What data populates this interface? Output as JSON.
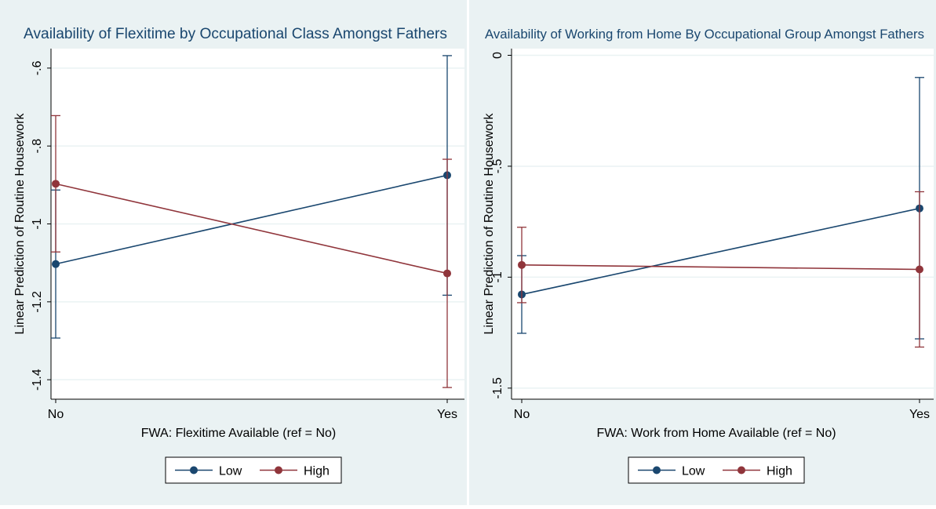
{
  "colors": {
    "low": "#1a476f",
    "high": "#90353b",
    "background": "#eaf2f3",
    "plot_bg": "#ffffff"
  },
  "chart_data": [
    {
      "type": "line",
      "title": "Availability of Flexitime by Occupational Class Amongst Fathers",
      "xlabel": "FWA: Flexitime Available (ref = No)",
      "ylabel": "Linear Prediction of Routine Housework",
      "categories": [
        "No",
        "Yes"
      ],
      "ylim": [
        -1.45,
        -0.55
      ],
      "yticks": [
        -1.4,
        -1.2,
        -1,
        -0.8,
        -0.6
      ],
      "ytick_labels": [
        "-1.4",
        "-1.2",
        "-1",
        "-.8",
        "-.6"
      ],
      "grid": true,
      "legend_position": "bottom",
      "series": [
        {
          "name": "Low",
          "values": [
            -1.103,
            -0.875
          ],
          "ci_low": [
            -1.293,
            -1.183
          ],
          "ci_high": [
            -0.913,
            -0.568
          ]
        },
        {
          "name": "High",
          "values": [
            -0.897,
            -1.127
          ],
          "ci_low": [
            -1.072,
            -1.42
          ],
          "ci_high": [
            -0.722,
            -0.834
          ]
        }
      ]
    },
    {
      "type": "line",
      "title": "Availability of Working from Home By Occupational Group Amongst Fathers",
      "xlabel": "FWA: Work from Home Available (ref = No)",
      "ylabel": "Linear Prediction of Routine Housework",
      "categories": [
        "No",
        "Yes"
      ],
      "ylim": [
        -1.55,
        0.03
      ],
      "yticks": [
        -1.5,
        -1,
        -0.5,
        0
      ],
      "ytick_labels": [
        "-1.5",
        "-1",
        "-.5",
        "0"
      ],
      "grid": true,
      "legend_position": "bottom",
      "series": [
        {
          "name": "Low",
          "values": [
            -1.078,
            -0.69
          ],
          "ci_low": [
            -1.253,
            -1.278
          ],
          "ci_high": [
            -0.903,
            -0.1
          ]
        },
        {
          "name": "High",
          "values": [
            -0.945,
            -0.965
          ],
          "ci_low": [
            -1.115,
            -1.315
          ],
          "ci_high": [
            -0.775,
            -0.615
          ]
        }
      ]
    }
  ]
}
